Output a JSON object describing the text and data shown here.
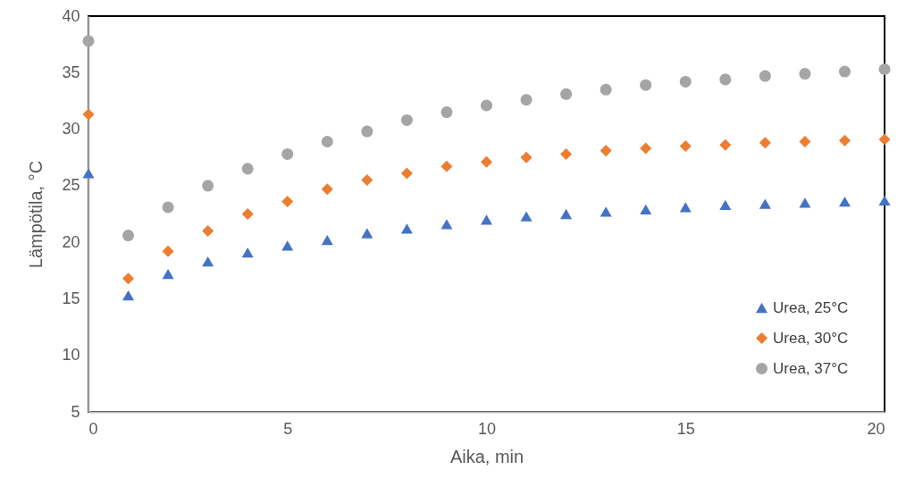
{
  "chart_data": {
    "type": "scatter",
    "xlabel": "Aika, min",
    "ylabel": "Lämpötila, °C",
    "x": [
      0,
      1,
      2,
      3,
      4,
      5,
      6,
      7,
      8,
      9,
      10,
      11,
      12,
      13,
      14,
      15,
      16,
      17,
      18,
      19,
      20
    ],
    "xlim": [
      0,
      20
    ],
    "xticks": [
      0,
      5,
      10,
      15,
      20
    ],
    "ylim": [
      5,
      40
    ],
    "yticks": [
      5,
      10,
      15,
      20,
      25,
      30,
      35,
      40
    ],
    "grid": false,
    "legend": "bottom right",
    "series": [
      {
        "name": "Urea, 25°C",
        "color": "#4472c4",
        "marker": "triangle",
        "values": [
          26.1,
          15.3,
          17.2,
          18.3,
          19.1,
          19.7,
          20.2,
          20.8,
          21.2,
          21.6,
          22.0,
          22.3,
          22.5,
          22.7,
          22.9,
          23.1,
          23.3,
          23.4,
          23.5,
          23.6,
          23.7
        ]
      },
      {
        "name": "Urea, 30°C",
        "color": "#ed7d31",
        "marker": "diamond",
        "values": [
          31.3,
          16.8,
          19.2,
          21.0,
          22.5,
          23.6,
          24.7,
          25.5,
          26.1,
          26.7,
          27.1,
          27.5,
          27.8,
          28.1,
          28.3,
          28.5,
          28.6,
          28.8,
          28.9,
          29.0,
          29.1
        ]
      },
      {
        "name": "Urea, 37°C",
        "color": "#a5a5a5",
        "marker": "circle",
        "values": [
          37.8,
          20.6,
          23.1,
          25.0,
          26.5,
          27.8,
          28.9,
          29.8,
          30.8,
          31.5,
          32.1,
          32.6,
          33.1,
          33.5,
          33.9,
          34.2,
          34.4,
          34.7,
          34.9,
          35.1,
          35.3
        ]
      }
    ]
  }
}
